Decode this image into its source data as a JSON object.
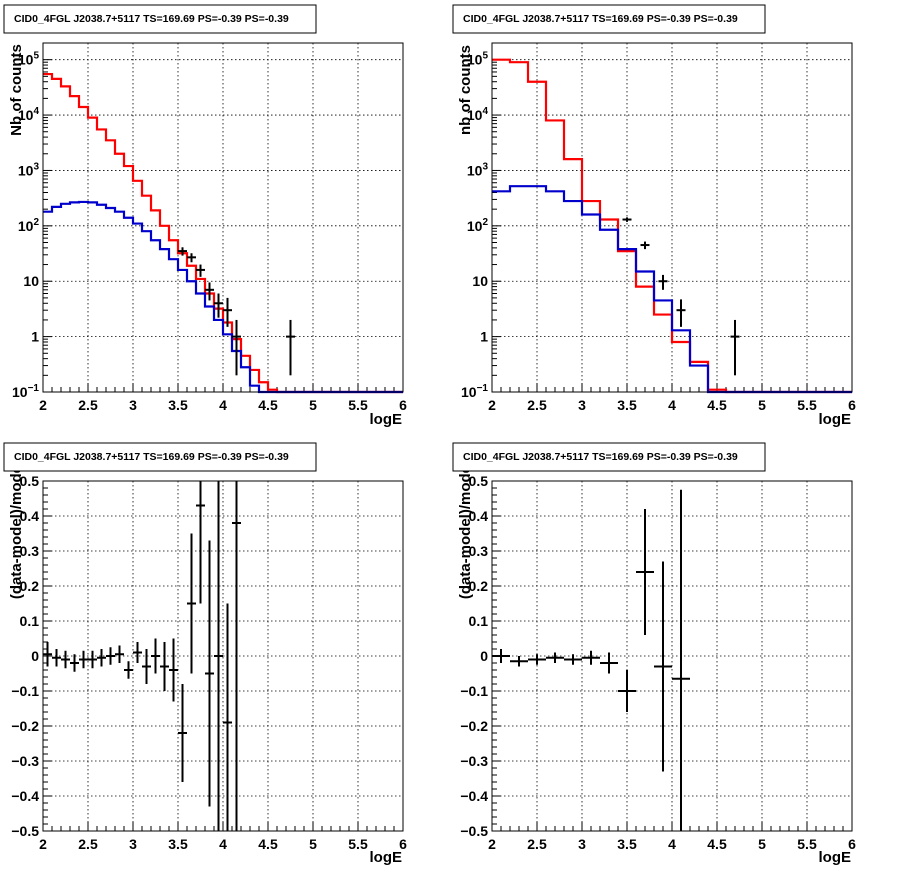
{
  "chart_data": [
    {
      "type": "histogram",
      "title": "CID0_4FGL J2038.7+5117 TS=169.69 PS=-0.39 PS=-0.39",
      "xlabel": "logE",
      "ylabel": "Nb of counts",
      "xlim": [
        2,
        6
      ],
      "ylim": [
        0.1,
        200000
      ],
      "log_y": true,
      "grid": true,
      "x_ticks": [
        "2",
        "2.5",
        "3",
        "3.5",
        "4",
        "4.5",
        "5",
        "5.5",
        "6"
      ],
      "y_ticks": [
        {
          "value": 0.1,
          "base": "10",
          "exp": "−1"
        },
        {
          "value": 1,
          "text": "1"
        },
        {
          "value": 10,
          "text": "10"
        },
        {
          "value": 100,
          "base": "10",
          "exp": "2"
        },
        {
          "value": 1000,
          "base": "10",
          "exp": "3"
        },
        {
          "value": 10000,
          "base": "10",
          "exp": "4"
        },
        {
          "value": 100000,
          "base": "10",
          "exp": "5"
        }
      ],
      "bin_width": 0.1,
      "series": [
        {
          "color": "#ff0000",
          "bin_edges_start": 2.0,
          "values": [
            55000,
            45000,
            33000,
            22000,
            14000,
            9000,
            5500,
            3500,
            2000,
            1200,
            650,
            350,
            190,
            100,
            55,
            32,
            19,
            11,
            6,
            3.2,
            1.8,
            0.9,
            0.45,
            0.25,
            0.15,
            0.11,
            0.1,
            0.1,
            0.1,
            0.1,
            0.1,
            0.1,
            0.1,
            0.1,
            0.1,
            0.1,
            0.1,
            0.1,
            0.1,
            0.1
          ]
        },
        {
          "color": "#0000cc",
          "bin_edges_start": 2.0,
          "values": [
            180,
            220,
            250,
            265,
            270,
            265,
            240,
            210,
            180,
            140,
            110,
            80,
            55,
            38,
            25,
            16,
            10,
            6,
            3.5,
            2,
            1.1,
            0.55,
            0.28,
            0.13,
            0.1,
            0.1,
            0.1,
            0.1,
            0.1,
            0.1,
            0.1,
            0.1,
            0.1,
            0.1,
            0.1,
            0.1,
            0.1,
            0.1,
            0.1,
            0.1
          ]
        }
      ],
      "points": [
        {
          "x": 3.55,
          "y": 35,
          "lo": 29,
          "hi": 41
        },
        {
          "x": 3.65,
          "y": 27,
          "lo": 22,
          "hi": 32
        },
        {
          "x": 3.75,
          "y": 16,
          "lo": 12,
          "hi": 20
        },
        {
          "x": 3.85,
          "y": 7,
          "lo": 4.5,
          "hi": 9.5
        },
        {
          "x": 3.95,
          "y": 4,
          "lo": 2.2,
          "hi": 6
        },
        {
          "x": 4.05,
          "y": 3,
          "lo": 1.5,
          "hi": 5
        },
        {
          "x": 4.15,
          "y": 1,
          "lo": 0.2,
          "hi": 2
        },
        {
          "x": 4.75,
          "y": 1,
          "lo": 0.2,
          "hi": 2
        }
      ]
    },
    {
      "type": "histogram",
      "title": "CID0_4FGL J2038.7+5117 TS=169.69 PS=-0.39 PS=-0.39",
      "xlabel": "logE",
      "ylabel": "nb of counts",
      "xlim": [
        2,
        6
      ],
      "ylim": [
        0.1,
        200000
      ],
      "log_y": true,
      "grid": true,
      "x_ticks": [
        "2",
        "2.5",
        "3",
        "3.5",
        "4",
        "4.5",
        "5",
        "5.5",
        "6"
      ],
      "y_ticks": [
        {
          "value": 0.1,
          "base": "10",
          "exp": "−1"
        },
        {
          "value": 1,
          "text": "1"
        },
        {
          "value": 10,
          "text": "10"
        },
        {
          "value": 100,
          "base": "10",
          "exp": "2"
        },
        {
          "value": 1000,
          "base": "10",
          "exp": "3"
        },
        {
          "value": 10000,
          "base": "10",
          "exp": "4"
        },
        {
          "value": 100000,
          "base": "10",
          "exp": "5"
        }
      ],
      "bin_width": 0.2,
      "series": [
        {
          "color": "#ff0000",
          "bin_edges_start": 2.0,
          "values": [
            100000,
            90000,
            40000,
            8000,
            1600,
            280,
            130,
            35,
            8,
            2.5,
            0.8,
            0.35,
            0.11,
            0.1,
            0.1,
            0.1,
            0.1,
            0.1,
            0.1,
            0.1
          ]
        },
        {
          "color": "#0000cc",
          "bin_edges_start": 2.0,
          "values": [
            420,
            520,
            520,
            420,
            280,
            160,
            85,
            38,
            15,
            4.5,
            1.3,
            0.3,
            0.1,
            0.1,
            0.1,
            0.1,
            0.1,
            0.1,
            0.1,
            0.1
          ]
        }
      ],
      "points": [
        {
          "x": 3.5,
          "y": 130,
          "lo": 118,
          "hi": 142
        },
        {
          "x": 3.7,
          "y": 45,
          "lo": 38,
          "hi": 52
        },
        {
          "x": 3.9,
          "y": 10,
          "lo": 7,
          "hi": 13
        },
        {
          "x": 4.1,
          "y": 3,
          "lo": 1.5,
          "hi": 4.7
        },
        {
          "x": 4.7,
          "y": 1,
          "lo": 0.2,
          "hi": 2
        }
      ]
    },
    {
      "type": "scatter",
      "title": "CID0_4FGL J2038.7+5117 TS=169.69 PS=-0.39 PS=-0.39",
      "xlabel": "logE",
      "ylabel": "(data-model)/model",
      "xlim": [
        2,
        6
      ],
      "ylim": [
        -0.5,
        0.5
      ],
      "log_y": false,
      "grid": true,
      "x_ticks": [
        "2",
        "2.5",
        "3",
        "3.5",
        "4",
        "4.5",
        "5",
        "5.5",
        "6"
      ],
      "y_ticks": [
        {
          "value": -0.5,
          "text": "−0.5"
        },
        {
          "value": -0.4,
          "text": "−0.4"
        },
        {
          "value": -0.3,
          "text": "−0.3"
        },
        {
          "value": -0.2,
          "text": "−0.2"
        },
        {
          "value": -0.1,
          "text": "−0.1"
        },
        {
          "value": 0,
          "text": "0"
        },
        {
          "value": 0.1,
          "text": "0.1"
        },
        {
          "value": 0.2,
          "text": "0.2"
        },
        {
          "value": 0.3,
          "text": "0.3"
        },
        {
          "value": 0.4,
          "text": "0.4"
        },
        {
          "value": 0.5,
          "text": "0.5"
        }
      ],
      "xerr": 0.05,
      "points": [
        {
          "x": 2.05,
          "y": 0.005,
          "err": 0.035
        },
        {
          "x": 2.15,
          "y": -0.005,
          "err": 0.025
        },
        {
          "x": 2.25,
          "y": -0.01,
          "err": 0.025
        },
        {
          "x": 2.35,
          "y": -0.02,
          "err": 0.025
        },
        {
          "x": 2.45,
          "y": -0.01,
          "err": 0.025
        },
        {
          "x": 2.55,
          "y": -0.01,
          "err": 0.025
        },
        {
          "x": 2.65,
          "y": -0.005,
          "err": 0.025
        },
        {
          "x": 2.75,
          "y": 0.0,
          "err": 0.025
        },
        {
          "x": 2.85,
          "y": 0.005,
          "err": 0.025
        },
        {
          "x": 2.95,
          "y": -0.04,
          "err": 0.025
        },
        {
          "x": 3.05,
          "y": 0.01,
          "err": 0.03
        },
        {
          "x": 3.15,
          "y": -0.03,
          "err": 0.05
        },
        {
          "x": 3.25,
          "y": 0.0,
          "err": 0.05
        },
        {
          "x": 3.35,
          "y": -0.03,
          "err": 0.07
        },
        {
          "x": 3.45,
          "y": -0.04,
          "err": 0.09
        },
        {
          "x": 3.55,
          "y": -0.22,
          "err": 0.14
        },
        {
          "x": 3.65,
          "y": 0.15,
          "err": 0.2
        },
        {
          "x": 3.75,
          "y": 0.43,
          "err": 0.28
        },
        {
          "x": 3.85,
          "y": -0.05,
          "err": 0.38
        },
        {
          "x": 3.95,
          "y": 0.0,
          "err": 0.6
        },
        {
          "x": 4.05,
          "y": -0.19,
          "err": 0.34
        },
        {
          "x": 4.15,
          "y": 0.38,
          "err": 0.9
        }
      ]
    },
    {
      "type": "scatter",
      "title": "CID0_4FGL J2038.7+5117 TS=169.69 PS=-0.39 PS=-0.39",
      "xlabel": "logE",
      "ylabel": "(data-model)/model",
      "xlim": [
        2,
        6
      ],
      "ylim": [
        -0.5,
        0.5
      ],
      "log_y": false,
      "grid": true,
      "x_ticks": [
        "2",
        "2.5",
        "3",
        "3.5",
        "4",
        "4.5",
        "5",
        "5.5",
        "6"
      ],
      "y_ticks": [
        {
          "value": -0.5,
          "text": "−0.5"
        },
        {
          "value": -0.4,
          "text": "−0.4"
        },
        {
          "value": -0.3,
          "text": "−0.3"
        },
        {
          "value": -0.2,
          "text": "−0.2"
        },
        {
          "value": -0.1,
          "text": "−0.1"
        },
        {
          "value": 0,
          "text": "0"
        },
        {
          "value": 0.1,
          "text": "0.1"
        },
        {
          "value": 0.2,
          "text": "0.2"
        },
        {
          "value": 0.3,
          "text": "0.3"
        },
        {
          "value": 0.4,
          "text": "0.4"
        },
        {
          "value": 0.5,
          "text": "0.5"
        }
      ],
      "xerr": 0.1,
      "points": [
        {
          "x": 2.1,
          "y": 0.0,
          "err": 0.02
        },
        {
          "x": 2.3,
          "y": -0.015,
          "err": 0.015
        },
        {
          "x": 2.5,
          "y": -0.01,
          "err": 0.015
        },
        {
          "x": 2.7,
          "y": -0.005,
          "err": 0.015
        },
        {
          "x": 2.9,
          "y": -0.01,
          "err": 0.015
        },
        {
          "x": 3.1,
          "y": -0.005,
          "err": 0.02
        },
        {
          "x": 3.3,
          "y": -0.02,
          "err": 0.03
        },
        {
          "x": 3.5,
          "y": -0.1,
          "err": 0.06
        },
        {
          "x": 3.7,
          "y": 0.24,
          "err": 0.18
        },
        {
          "x": 3.9,
          "y": -0.03,
          "err": 0.3
        },
        {
          "x": 4.1,
          "y": -0.065,
          "err": 0.54
        }
      ]
    }
  ]
}
